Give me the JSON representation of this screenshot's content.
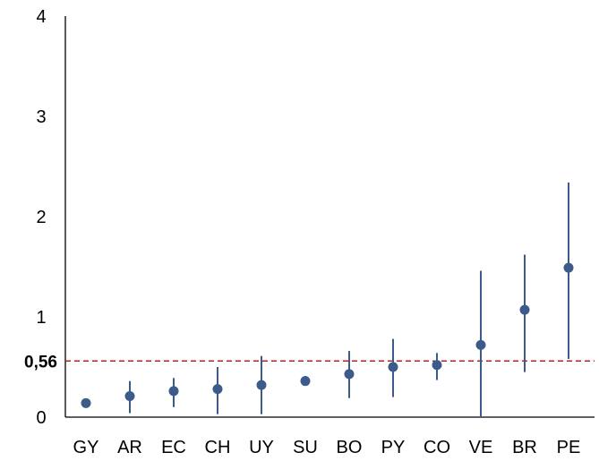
{
  "chart_data": {
    "type": "scatter",
    "categories": [
      "GY",
      "AR",
      "EC",
      "CH",
      "UY",
      "SU",
      "BO",
      "PY",
      "CO",
      "VE",
      "BR",
      "PE"
    ],
    "series": [
      {
        "values": [
          0.14,
          0.21,
          0.26,
          0.28,
          0.32,
          0.36,
          0.43,
          0.5,
          0.52,
          0.72,
          1.07,
          1.49
        ],
        "lower": [
          0.14,
          0.04,
          0.1,
          0.03,
          0.03,
          0.32,
          0.19,
          0.2,
          0.37,
          0.0,
          0.45,
          0.58
        ],
        "upper": [
          0.14,
          0.36,
          0.39,
          0.5,
          0.61,
          0.41,
          0.66,
          0.78,
          0.64,
          1.46,
          1.62,
          2.34
        ]
      }
    ],
    "reference_line": {
      "value": 0.56,
      "label": "0,56",
      "color": "#b22222"
    },
    "ylim": [
      0,
      4
    ],
    "yticks": [
      "0",
      "1",
      "2",
      "3",
      "4"
    ],
    "grid": false,
    "marker_color": "#3c5a8a"
  }
}
